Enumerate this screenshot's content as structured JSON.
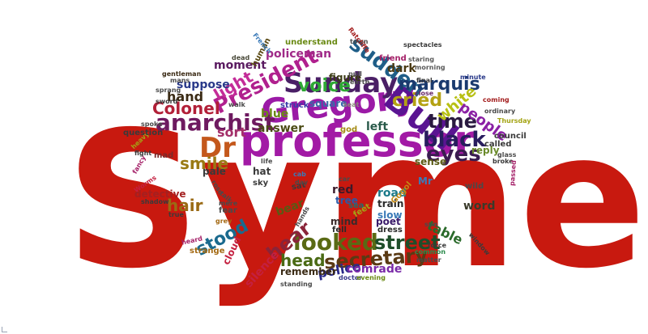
{
  "word_cloud": {
    "words": [
      {
        "text": "Syme",
        "color": "#c8190f"
      },
      {
        "text": "professor",
        "color": "#a21aa5"
      },
      {
        "text": "Gregory",
        "color": "#9b1aa6"
      },
      {
        "text": "Bull",
        "color": "#5a1492"
      },
      {
        "text": "Sunday",
        "color": "#4a1f66"
      },
      {
        "text": "President",
        "color": "#b0208e"
      },
      {
        "text": "anarchist",
        "color": "#6e1a60"
      },
      {
        "text": "Dr",
        "color": "#c4581c"
      },
      {
        "text": "looked",
        "color": "#5a6a14"
      },
      {
        "text": "secretary",
        "color": "#5a3a14"
      },
      {
        "text": "street",
        "color": "#1f4e2a"
      },
      {
        "text": "black",
        "color": "#281c5e"
      },
      {
        "text": "eyes",
        "color": "#3a1c50"
      },
      {
        "text": "time",
        "color": "#2a1a40"
      },
      {
        "text": "sudden",
        "color": "#1f5e88"
      },
      {
        "text": "cried",
        "color": "#b4a214"
      },
      {
        "text": "voice",
        "color": "#2ea834"
      },
      {
        "text": "Colonel",
        "color": "#b22038"
      },
      {
        "text": "marquis",
        "color": "#1a3a6e"
      },
      {
        "text": "hear",
        "color": "#8a2438"
      },
      {
        "text": "stood",
        "color": "#1a6a8e"
      },
      {
        "text": "head",
        "color": "#4a6a14"
      },
      {
        "text": "smile",
        "color": "#9a7a14"
      },
      {
        "text": "light",
        "color": "#c42c98"
      },
      {
        "text": "people",
        "color": "#8a20a4"
      },
      {
        "text": "white",
        "color": "#b8c014"
      },
      {
        "text": "hair",
        "color": "#9a6a14"
      },
      {
        "text": "police",
        "color": "#2a2a8a"
      },
      {
        "text": "comrade",
        "color": "#7a2aa8"
      },
      {
        "text": "table",
        "color": "#2a6a2a"
      },
      {
        "text": "silence",
        "color": "#c42040"
      },
      {
        "text": "sort",
        "color": "#a4306a"
      },
      {
        "text": "hand",
        "color": "#3a2a14"
      },
      {
        "text": "moment",
        "color": "#5a1a60"
      },
      {
        "text": "dark",
        "color": "#4a3a14"
      },
      {
        "text": "policeman",
        "color": "#a02a88"
      },
      {
        "text": "suppose",
        "color": "#2a3a8a"
      },
      {
        "text": "answer",
        "color": "#4a4a14"
      },
      {
        "text": "blue",
        "color": "#6a8a14"
      },
      {
        "text": "square",
        "color": "#3a6aa8"
      },
      {
        "text": "red",
        "color": "#3a1a2a"
      },
      {
        "text": "word",
        "color": "#3a3a2a"
      },
      {
        "text": "reply",
        "color": "#6a8a2a"
      },
      {
        "text": "left",
        "color": "#2a5a4a"
      },
      {
        "text": "figure",
        "color": "#3a3a14"
      },
      {
        "text": "remember",
        "color": "#3a2a14"
      },
      {
        "text": "road",
        "color": "#1a7a8a"
      },
      {
        "text": "bear",
        "color": "#5a5a14"
      },
      {
        "text": "slow",
        "color": "#3a7ab8"
      },
      {
        "text": "train",
        "color": "#2a2a2a"
      },
      {
        "text": "poet",
        "color": "#3a1a6a"
      },
      {
        "text": "tree",
        "color": "#2a5aa8"
      },
      {
        "text": "mind",
        "color": "#3a2a2a"
      },
      {
        "text": "fell",
        "color": "#2a2a2a"
      },
      {
        "text": "dress",
        "color": "#2a2a2a"
      },
      {
        "text": "detective",
        "color": "#a42020"
      },
      {
        "text": "pale",
        "color": "#3a3a3a"
      },
      {
        "text": "hat",
        "color": "#3a3a3a"
      },
      {
        "text": "sky",
        "color": "#3a3a3a"
      },
      {
        "text": "mad",
        "color": "#7a2a2a"
      },
      {
        "text": "true",
        "color": "#3a3a3a"
      },
      {
        "text": "fear",
        "color": "#4a4a4a"
      },
      {
        "text": "strange",
        "color": "#a46a14"
      },
      {
        "text": "human",
        "color": "#5a4a14"
      },
      {
        "text": "dead",
        "color": "#4a4a3a"
      },
      {
        "text": "gentleman",
        "color": "#3a2a14"
      },
      {
        "text": "mans",
        "color": "#4a4a4a"
      },
      {
        "text": "walk",
        "color": "#4a4a4a"
      },
      {
        "text": "struck",
        "color": "#3a3aa8"
      },
      {
        "text": "seat",
        "color": "#8a8a7a"
      },
      {
        "text": "god",
        "color": "#a48a14"
      },
      {
        "text": "friend",
        "color": "#a42068"
      },
      {
        "text": "understand",
        "color": "#6a8a14"
      },
      {
        "text": "town",
        "color": "#4a4a4a"
      },
      {
        "text": "spectacles",
        "color": "#3a3a3a"
      },
      {
        "text": "Ratcliffe",
        "color": "#a42020"
      },
      {
        "text": "French",
        "color": "#3a7ab8"
      },
      {
        "text": "earth",
        "color": "#4a4a4a"
      },
      {
        "text": "pull",
        "color": "#4a4a4a"
      },
      {
        "text": "staring",
        "color": "#5a5a5a"
      },
      {
        "text": "morning",
        "color": "#5a5a5a"
      },
      {
        "text": "coming",
        "color": "#a42020"
      },
      {
        "text": "minute",
        "color": "#2a3a8a"
      },
      {
        "text": "close",
        "color": "#6a2a6a"
      },
      {
        "text": "final",
        "color": "#3a3a3a"
      },
      {
        "text": "ordinary",
        "color": "#4a4a4a"
      },
      {
        "text": "called",
        "color": "#3a3a3a"
      },
      {
        "text": "council",
        "color": "#3a3a3a"
      },
      {
        "text": "Thursday",
        "color": "#a4a414"
      },
      {
        "text": "glass",
        "color": "#4a4a4a"
      },
      {
        "text": "broke",
        "color": "#3a3a3a"
      },
      {
        "text": "passed",
        "color": "#a42068"
      },
      {
        "text": "sense",
        "color": "#5a5a14"
      },
      {
        "text": "Mr",
        "color": "#3a7ab8"
      },
      {
        "text": "wild",
        "color": "#4a4a4a"
      },
      {
        "text": "sun",
        "color": "#4a4a4a"
      },
      {
        "text": "window",
        "color": "#3a3a3a"
      },
      {
        "text": "force",
        "color": "#3a3a3a"
      },
      {
        "text": "common",
        "color": "#2a8a4a"
      },
      {
        "text": "matter",
        "color": "#4a4a4a"
      },
      {
        "text": "doctor",
        "color": "#3a3a8a"
      },
      {
        "text": "evening",
        "color": "#6a8a14"
      },
      {
        "text": "standing",
        "color": "#4a4a4a"
      },
      {
        "text": "cloud",
        "color": "#c42040"
      },
      {
        "text": "heard",
        "color": "#a42068"
      },
      {
        "text": "grey",
        "color": "#a46a14"
      },
      {
        "text": "shadow",
        "color": "#3a3a3a"
      },
      {
        "text": "fancy",
        "color": "#a42068"
      },
      {
        "text": "fight",
        "color": "#3a3a3a"
      },
      {
        "text": "heavy",
        "color": "#a4a414"
      },
      {
        "text": "question",
        "color": "#3a3a3a"
      },
      {
        "text": "spoke",
        "color": "#4a4a4a"
      },
      {
        "text": "sprang",
        "color": "#4a4a4a"
      },
      {
        "text": "sword",
        "color": "#3a3a3a"
      },
      {
        "text": "sea",
        "color": "#2a6a6a"
      },
      {
        "text": "sat",
        "color": "#3a3a3a"
      },
      {
        "text": "feet",
        "color": "#a4a414"
      },
      {
        "text": "hands",
        "color": "#4a4a4a"
      },
      {
        "text": "Gogol",
        "color": "#c48a14"
      },
      {
        "text": "life",
        "color": "#4a4a4a"
      },
      {
        "text": "cab",
        "color": "#3a7ab8"
      },
      {
        "text": "day",
        "color": "#4a4a4a"
      },
      {
        "text": "car",
        "color": "#4a4a4a"
      },
      {
        "text": "rose",
        "color": "#4a4a4a"
      },
      {
        "text": "talk",
        "color": "#4a4a4a"
      },
      {
        "text": "mere",
        "color": "#4a4a4a"
      },
      {
        "text": "Worms",
        "color": "#c42040"
      }
    ]
  }
}
